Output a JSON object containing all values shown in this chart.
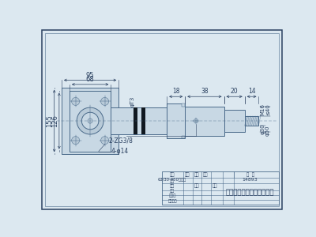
{
  "bg_color": "#dce8f0",
  "bg_inner": "#dce8f0",
  "line_color": "#4a6a8a",
  "dark_line": "#2a4060",
  "fill_light": "#c8d8e4",
  "fill_mid": "#b8cad8",
  "seal_color": "#101820",
  "hatch_color": "#4a6a8a",
  "company": "邯台新力液压设备有限公司",
  "table_text1": "63/30-350活径缸",
  "table_id": "14893",
  "dim_95": "95",
  "dim_68": "68",
  "dim_18": "18",
  "dim_38": "38",
  "dim_20": "20",
  "dim_14": "14",
  "dim_155": "155",
  "dim_126": "126",
  "dim_m16": "M16",
  "dim_k40": "≤40",
  "dim_030": "φ30",
  "dim_050": "φ50",
  "dim_4d14": "4-φ14",
  "dim_t3": "φT3",
  "dim_zg": "2-ZG3/8",
  "label_zhitu": "制图",
  "label_sheji": "设计",
  "label_shenji": "审核",
  "label_biaozh": "标准化",
  "label_weight": "重量",
  "label_count": "数量",
  "label_material": "材料",
  "label_scale": "比例",
  "label_drawno": "图  号",
  "label_kaiq": "开气",
  "label_zhongl": "重量",
  "label_wenj": "文件主数"
}
